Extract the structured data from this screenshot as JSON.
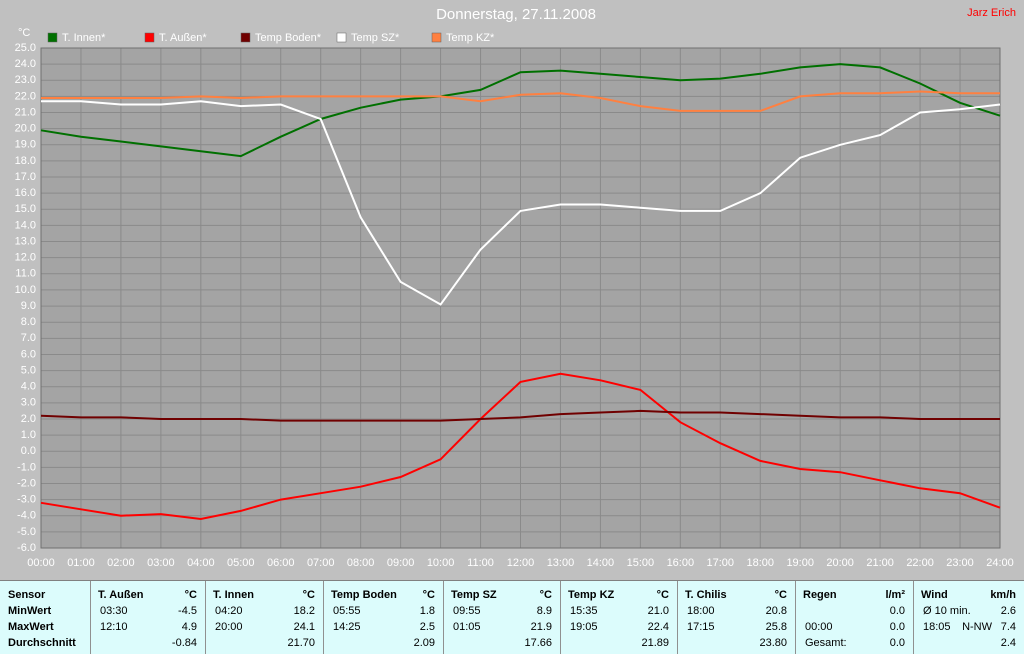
{
  "chart_data": {
    "type": "line",
    "title": "Donnerstag, 27.11.2008",
    "annotation": "Jarz Erich",
    "y_label": "°C",
    "x": [
      0,
      1,
      2,
      3,
      4,
      5,
      6,
      7,
      8,
      9,
      10,
      11,
      12,
      13,
      14,
      15,
      16,
      17,
      18,
      19,
      20,
      21,
      22,
      23,
      24
    ],
    "xlim": [
      0,
      24
    ],
    "xticks": [
      {
        "value": 0,
        "label": "00:00"
      },
      {
        "value": 1,
        "label": "01:00"
      },
      {
        "value": 2,
        "label": "02:00"
      },
      {
        "value": 3,
        "label": "03:00"
      },
      {
        "value": 4,
        "label": "04:00"
      },
      {
        "value": 5,
        "label": "05:00"
      },
      {
        "value": 6,
        "label": "06:00"
      },
      {
        "value": 7,
        "label": "07:00"
      },
      {
        "value": 8,
        "label": "08:00"
      },
      {
        "value": 9,
        "label": "09:00"
      },
      {
        "value": 10,
        "label": "10:00"
      },
      {
        "value": 11,
        "label": "11:00"
      },
      {
        "value": 12,
        "label": "12:00"
      },
      {
        "value": 13,
        "label": "13:00"
      },
      {
        "value": 14,
        "label": "14:00"
      },
      {
        "value": 15,
        "label": "15:00"
      },
      {
        "value": 16,
        "label": "16:00"
      },
      {
        "value": 17,
        "label": "17:00"
      },
      {
        "value": 18,
        "label": "18:00"
      },
      {
        "value": 19,
        "label": "19:00"
      },
      {
        "value": 20,
        "label": "20:00"
      },
      {
        "value": 21,
        "label": "21:00"
      },
      {
        "value": 22,
        "label": "22:00"
      },
      {
        "value": 23,
        "label": "23:00"
      },
      {
        "value": 24,
        "label": "24:00"
      }
    ],
    "ylim": [
      -6,
      25
    ],
    "yticks": [
      {
        "value": 25,
        "label": "25.0"
      },
      {
        "value": 24,
        "label": "24.0"
      },
      {
        "value": 23,
        "label": "23.0"
      },
      {
        "value": 22,
        "label": "22.0"
      },
      {
        "value": 21,
        "label": "21.0"
      },
      {
        "value": 20,
        "label": "20.0"
      },
      {
        "value": 19,
        "label": "19.0"
      },
      {
        "value": 18,
        "label": "18.0"
      },
      {
        "value": 17,
        "label": "17.0"
      },
      {
        "value": 16,
        "label": "16.0"
      },
      {
        "value": 15,
        "label": "15.0"
      },
      {
        "value": 14,
        "label": "14.0"
      },
      {
        "value": 13,
        "label": "13.0"
      },
      {
        "value": 12,
        "label": "12.0"
      },
      {
        "value": 11,
        "label": "11.0"
      },
      {
        "value": 10,
        "label": "10.0"
      },
      {
        "value": 9,
        "label": "9.0"
      },
      {
        "value": 8,
        "label": "8.0"
      },
      {
        "value": 7,
        "label": "7.0"
      },
      {
        "value": 6,
        "label": "6.0"
      },
      {
        "value": 5,
        "label": "5.0"
      },
      {
        "value": 4,
        "label": "4.0"
      },
      {
        "value": 3,
        "label": "3.0"
      },
      {
        "value": 2,
        "label": "2.0"
      },
      {
        "value": 1,
        "label": "1.0"
      },
      {
        "value": 0,
        "label": "0.0"
      },
      {
        "value": -1,
        "label": "-1.0"
      },
      {
        "value": -2,
        "label": "-2.0"
      },
      {
        "value": -3,
        "label": "-3.0"
      },
      {
        "value": -4,
        "label": "-4.0"
      },
      {
        "value": -5,
        "label": "-5.0"
      },
      {
        "value": -6,
        "label": "-6.0"
      }
    ],
    "grid": true,
    "series": [
      {
        "name": "T. Innen*",
        "color": "#007000",
        "values": [
          19.9,
          19.5,
          19.2,
          18.9,
          18.6,
          18.3,
          19.5,
          20.6,
          21.3,
          21.8,
          22.0,
          22.4,
          23.5,
          23.6,
          23.4,
          23.2,
          23.0,
          23.1,
          23.4,
          23.8,
          24.0,
          23.8,
          22.8,
          21.6,
          20.8
        ]
      },
      {
        "name": "T. Außen*",
        "color": "#ff0000",
        "values": [
          -3.2,
          -3.6,
          -4.0,
          -3.9,
          -4.2,
          -3.7,
          -3.0,
          -2.6,
          -2.2,
          -1.6,
          -0.5,
          2.0,
          4.3,
          4.8,
          4.4,
          3.8,
          1.8,
          0.5,
          -0.6,
          -1.1,
          -1.3,
          -1.8,
          -2.3,
          -2.6,
          -3.5
        ]
      },
      {
        "name": "Temp Boden*",
        "color": "#700000",
        "values": [
          2.2,
          2.1,
          2.1,
          2.0,
          2.0,
          2.0,
          1.9,
          1.9,
          1.9,
          1.9,
          1.9,
          2.0,
          2.1,
          2.3,
          2.4,
          2.5,
          2.4,
          2.4,
          2.3,
          2.2,
          2.1,
          2.1,
          2.0,
          2.0,
          2.0
        ]
      },
      {
        "name": "Temp SZ*",
        "color": "#ffffff",
        "values": [
          21.7,
          21.7,
          21.5,
          21.5,
          21.7,
          21.4,
          21.5,
          20.6,
          14.5,
          10.5,
          9.1,
          12.5,
          14.9,
          15.3,
          15.3,
          15.1,
          14.9,
          14.9,
          16.0,
          18.2,
          19.0,
          19.6,
          21.0,
          21.2,
          21.5
        ]
      },
      {
        "name": "Temp KZ*",
        "color": "#ff8040",
        "values": [
          21.9,
          21.9,
          21.9,
          21.9,
          22.0,
          21.9,
          22.0,
          22.0,
          22.0,
          22.0,
          22.0,
          21.7,
          22.1,
          22.2,
          21.9,
          21.4,
          21.1,
          21.1,
          21.1,
          22.0,
          22.2,
          22.2,
          22.3,
          22.2,
          22.2
        ]
      }
    ]
  },
  "table": {
    "corner": "Sensor",
    "row_labels": [
      "MinWert",
      "MaxWert",
      "Durchschnitt"
    ],
    "columns": [
      {
        "name": "T. Außen",
        "unit": "°C",
        "cells": [
          {
            "left": "03:30",
            "right": "-4.5"
          },
          {
            "left": "12:10",
            "right": "4.9"
          },
          {
            "right": "-0.84"
          }
        ]
      },
      {
        "name": "T. Innen",
        "unit": "°C",
        "cells": [
          {
            "left": "04:20",
            "right": "18.2"
          },
          {
            "left": "20:00",
            "right": "24.1"
          },
          {
            "right": "21.70"
          }
        ]
      },
      {
        "name": "Temp Boden",
        "unit": "°C",
        "cells": [
          {
            "left": "05:55",
            "right": "1.8"
          },
          {
            "left": "14:25",
            "right": "2.5"
          },
          {
            "right": "2.09"
          }
        ]
      },
      {
        "name": "Temp SZ",
        "unit": "°C",
        "cells": [
          {
            "left": "09:55",
            "right": "8.9"
          },
          {
            "left": "01:05",
            "right": "21.9"
          },
          {
            "right": "17.66"
          }
        ]
      },
      {
        "name": "Temp KZ",
        "unit": "°C",
        "cells": [
          {
            "left": "15:35",
            "right": "21.0"
          },
          {
            "left": "19:05",
            "right": "22.4"
          },
          {
            "right": "21.89"
          }
        ]
      },
      {
        "name": "T. Chilis",
        "unit": "°C",
        "cells": [
          {
            "left": "18:00",
            "right": "20.8"
          },
          {
            "left": "17:15",
            "right": "25.8"
          },
          {
            "right": "23.80"
          }
        ]
      },
      {
        "name": "Regen",
        "unit": "l/m²",
        "cells": [
          {
            "right": "0.0"
          },
          {
            "left": "00:00",
            "right": "0.0"
          },
          {
            "left": "Gesamt:",
            "right": "0.0"
          }
        ]
      },
      {
        "name": "Wind",
        "unit": "km/h",
        "cells": [
          {
            "left": "Ø 10 min.",
            "right": "2.6"
          },
          {
            "left": "18:05",
            "mid": "N-NW",
            "right": "7.4"
          },
          {
            "right": "2.4"
          }
        ]
      }
    ]
  }
}
